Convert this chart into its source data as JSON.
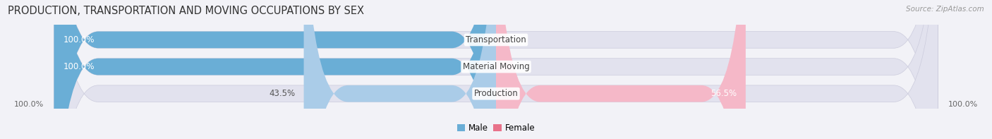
{
  "title": "PRODUCTION, TRANSPORTATION AND MOVING OCCUPATIONS BY SEX",
  "source": "Source: ZipAtlas.com",
  "categories": [
    "Transportation",
    "Material Moving",
    "Production"
  ],
  "male_values": [
    100.0,
    100.0,
    43.5
  ],
  "female_values": [
    0.0,
    0.0,
    56.5
  ],
  "male_color_solid": "#6aaed6",
  "male_color_light": "#aacce8",
  "female_color_solid": "#e8728a",
  "female_color_light": "#f5b8c8",
  "bar_height": 0.62,
  "background_color": "#f2f2f7",
  "bar_background_color": "#e2e2ee",
  "title_fontsize": 10.5,
  "source_fontsize": 7.5,
  "label_fontsize": 8.5,
  "pct_fontsize": 8.5,
  "axis_label_fontsize": 8,
  "legend_labels": [
    "Male",
    "Female"
  ],
  "bottom_labels": [
    "100.0%",
    "100.0%"
  ]
}
